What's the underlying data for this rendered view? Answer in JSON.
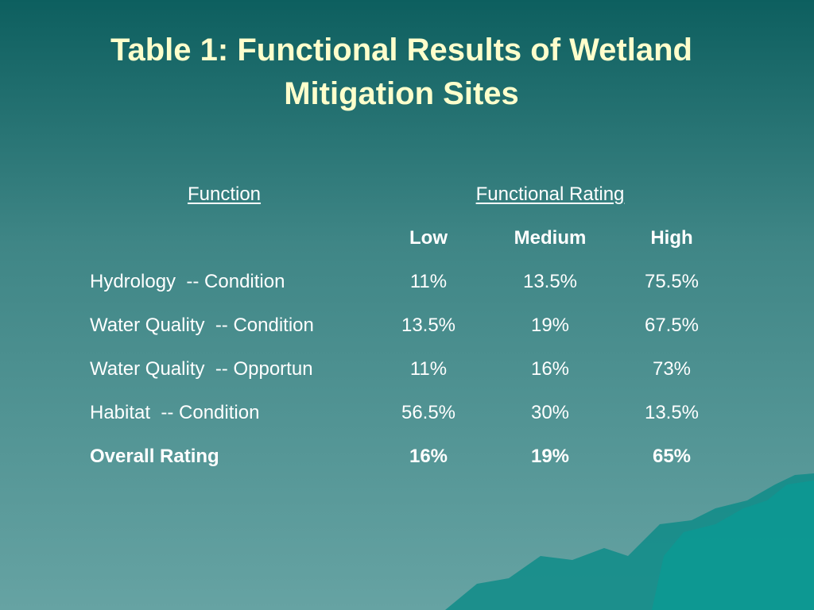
{
  "header": {
    "title_lines": [
      "Table 1: Functional Results of Wetland",
      "Mitigation Sites"
    ]
  },
  "table": {
    "headers": [
      "Function",
      "Functional Rating"
    ],
    "subheaders": [
      "Low",
      "Medium",
      "High"
    ],
    "rows": [
      [
        "Hydrology  -- Condition",
        "11%",
        "13.5%",
        "75.5%"
      ],
      [
        "Water Quality  -- Condition",
        "13.5%",
        "19%",
        "67.5%"
      ],
      [
        "Water Quality  -- Opportun",
        "11%",
        "16%",
        "73%"
      ],
      [
        "Habitat  -- Condition",
        "56.5%",
        "30%",
        "13.5%"
      ]
    ],
    "summary": [
      "Overall Rating",
      "16%",
      "19%",
      "65%"
    ]
  }
}
